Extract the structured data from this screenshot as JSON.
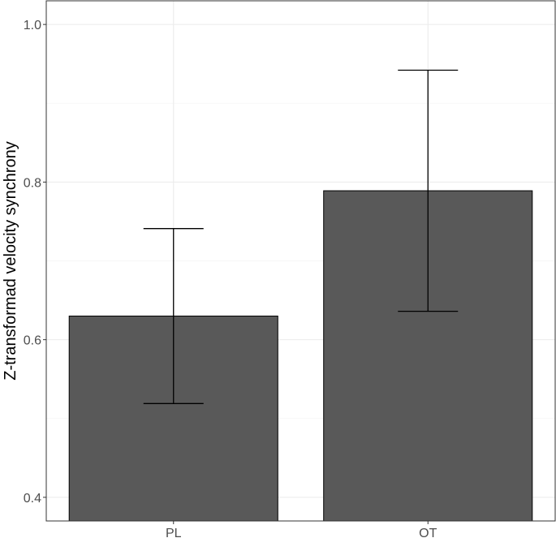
{
  "chart_data": {
    "type": "bar",
    "title": "",
    "xlabel": "",
    "ylabel": "Z-transformad velocity synchrony",
    "categories": [
      "PL",
      "OT"
    ],
    "values": [
      0.63,
      0.789
    ],
    "error_bars": [
      {
        "low": 0.519,
        "high": 0.741
      },
      {
        "low": 0.636,
        "high": 0.942
      }
    ],
    "ylim": [
      0.37,
      1.03
    ],
    "yticks": [
      0.4,
      0.6,
      0.8,
      1.0
    ],
    "ytick_labels": [
      "0.4",
      "0.6",
      "0.8",
      "1.0"
    ],
    "grid": true,
    "legend": "none",
    "colors": {
      "bar_fill": "#595959",
      "bar_stroke": "#000000",
      "error_bar": "#000000",
      "grid_major": "#ebebeb",
      "grid_minor": "#f5f5f5",
      "panel_border": "#333333"
    }
  }
}
